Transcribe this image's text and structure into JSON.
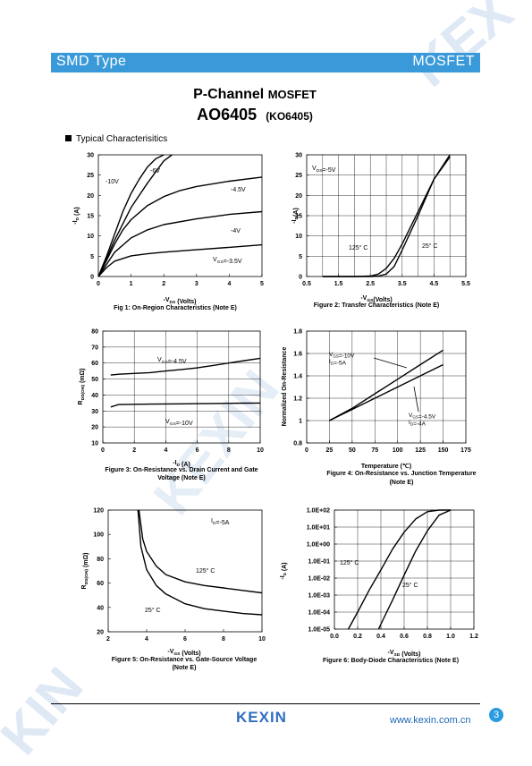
{
  "header": {
    "left": "SMD Type",
    "right": "MOSFET"
  },
  "title": {
    "line1_main": "P-Channel ",
    "line1_small": "MOSFET",
    "part": "AO6405",
    "alt_part": "(KO6405)"
  },
  "section_title": "Typical  Characterisitics",
  "footer": {
    "logo": "KEXIN",
    "website": "www.kexin.com.cn",
    "page": "3"
  },
  "charts": [
    {
      "id": "fig1",
      "caption": "Fig 1: On-Region Characteristics (Note E)",
      "xlabel": "-VDS (Volts)",
      "ylabel": "-ID (A)",
      "x_ticks": [
        "0",
        "1",
        "2",
        "3",
        "4",
        "5"
      ],
      "y_ticks": [
        "0",
        "5",
        "10",
        "15",
        "20",
        "25",
        "30"
      ],
      "annotations": [
        "-10V",
        "-6V",
        "-4.5V",
        "-4V",
        "VGS=-3.5V"
      ]
    },
    {
      "id": "fig2",
      "caption": "Figure 2: Transfer Characteristics (Note E)",
      "xlabel": "-VGS(Volts)",
      "ylabel": "-ID(A)",
      "x_ticks": [
        "0.5",
        "1.5",
        "2.5",
        "3.5",
        "4.5",
        "5.5"
      ],
      "x_minor_ticks": [
        "1",
        "2",
        "3",
        "4",
        "5"
      ],
      "y_ticks": [
        "0",
        "5",
        "10",
        "15",
        "20",
        "25",
        "30"
      ],
      "annotations": [
        "VDS=-5V",
        "125° C",
        "25° C"
      ]
    },
    {
      "id": "fig3",
      "caption": "Figure 3: On-Resistance vs. Drain Current and Gate Voltage (Note E)",
      "xlabel": "-ID (A)",
      "ylabel": "RDS(ON) (mΩ)",
      "x_ticks": [
        "0",
        "2",
        "4",
        "6",
        "8",
        "10"
      ],
      "y_ticks": [
        "10",
        "20",
        "30",
        "40",
        "50",
        "60",
        "70",
        "80"
      ],
      "annotations": [
        "VGS=-4.5V",
        "VGS=-10V"
      ]
    },
    {
      "id": "fig4",
      "caption": "Figure 4: On-Resistance vs. Junction Temperature (Note E)",
      "xlabel": "Temperature (℃)",
      "ylabel": "Normalized On-Resistance",
      "x_ticks": [
        "0",
        "25",
        "50",
        "75",
        "100",
        "125",
        "150",
        "175"
      ],
      "y_ticks": [
        "0.8",
        "1",
        "1.2",
        "1.4",
        "1.6",
        "1.8"
      ],
      "annotations": [
        "VGS=-10V",
        "ID=-5A",
        "VGS=-4.5V",
        "ID=-4A"
      ]
    },
    {
      "id": "fig5",
      "caption": "Figure 5: On-Resistance vs. Gate-Source Voltage (Note E)",
      "xlabel": "-VGS (Volts)",
      "ylabel": "RDS(ON) (mΩ)",
      "x_ticks": [
        "2",
        "4",
        "6",
        "8",
        "10"
      ],
      "y_ticks": [
        "20",
        "40",
        "60",
        "80",
        "100",
        "120"
      ],
      "annotations": [
        "ID=-5A",
        "125° C",
        "25° C"
      ]
    },
    {
      "id": "fig6",
      "caption": "Figure 6: Body-Diode Characteristics (Note E)",
      "xlabel": "-VSD (Volts)",
      "ylabel": "-IS (A)",
      "x_ticks": [
        "0.0",
        "0.2",
        "0.4",
        "0.6",
        "0.8",
        "1.0",
        "1.2"
      ],
      "y_ticks": [
        "1.0E-05",
        "1.0E-04",
        "1.0E-03",
        "1.0E-02",
        "1.0E-01",
        "1.0E+00",
        "1.0E+01",
        "1.0E+02"
      ],
      "annotations": [
        "125° C",
        "25° C"
      ]
    }
  ],
  "chart_data": [
    {
      "type": "line",
      "title": "Fig 1: On-Region Characteristics (Note E)",
      "xlabel": "-VDS (Volts)",
      "ylabel": "-ID (A)",
      "xlim": [
        0,
        5
      ],
      "ylim": [
        0,
        30
      ],
      "grid": false,
      "series": [
        {
          "name": "-10V",
          "x": [
            0,
            0.25,
            0.5,
            0.75,
            1,
            1.25,
            1.5,
            1.75,
            2
          ],
          "y": [
            0,
            5,
            10.5,
            16,
            20.5,
            24,
            27,
            29,
            30
          ]
        },
        {
          "name": "-6V",
          "x": [
            0,
            0.25,
            0.5,
            0.75,
            1,
            1.5,
            2,
            2.25
          ],
          "y": [
            0,
            4.5,
            9,
            13,
            17,
            23,
            28.5,
            30
          ]
        },
        {
          "name": "-4.5V",
          "x": [
            0,
            0.25,
            0.5,
            0.75,
            1,
            1.5,
            2,
            2.5,
            3,
            4,
            5
          ],
          "y": [
            0,
            4,
            8,
            11.5,
            14,
            17.5,
            19.7,
            21.2,
            22.2,
            23.5,
            24.5
          ]
        },
        {
          "name": "-4V",
          "x": [
            0,
            0.25,
            0.5,
            1,
            1.5,
            2,
            3,
            4,
            5
          ],
          "y": [
            0,
            3,
            6,
            9.5,
            11.5,
            12.8,
            14.2,
            15.3,
            16
          ]
        },
        {
          "name": "VGS=-3.5V",
          "x": [
            0,
            0.25,
            0.5,
            1,
            1.5,
            2,
            3,
            4,
            5
          ],
          "y": [
            0,
            2.2,
            3.8,
            5.1,
            5.6,
            6,
            6.6,
            7.2,
            7.8
          ]
        }
      ]
    },
    {
      "type": "line",
      "title": "Figure 2: Transfer Characteristics (Note E)",
      "xlabel": "-VGS(Volts)",
      "ylabel": "-ID(A)",
      "xlim": [
        0.5,
        5.5
      ],
      "ylim": [
        0,
        30
      ],
      "grid": true,
      "series": [
        {
          "name": "125° C",
          "x": [
            1.0,
            2.0,
            2.5,
            2.75,
            3.0,
            3.25,
            3.5,
            4.0,
            4.5,
            5.0
          ],
          "y": [
            0,
            0,
            0.1,
            0.6,
            2,
            4.5,
            8,
            16,
            24,
            30
          ]
        },
        {
          "name": "25° C",
          "x": [
            1.0,
            2.5,
            2.75,
            3.0,
            3.25,
            3.5,
            4.0,
            4.5,
            5.0
          ],
          "y": [
            0,
            0,
            0.1,
            0.6,
            2.5,
            6.5,
            15,
            24,
            29.5
          ]
        }
      ]
    },
    {
      "type": "line",
      "title": "Figure 3: On-Resistance vs. Drain Current and Gate Voltage (Note E)",
      "xlabel": "-ID (A)",
      "ylabel": "RDS(ON) (mΩ)",
      "xlim": [
        0,
        10
      ],
      "ylim": [
        10,
        80
      ],
      "grid": true,
      "series": [
        {
          "name": "VGS=-4.5V",
          "x": [
            0.5,
            1,
            2,
            3,
            4,
            5,
            6,
            7,
            8,
            9,
            10
          ],
          "y": [
            52.5,
            53,
            53.5,
            54,
            55,
            56,
            57,
            58.5,
            60,
            61.5,
            63
          ]
        },
        {
          "name": "VGS=-10V",
          "x": [
            0.5,
            1,
            2,
            3,
            4,
            5,
            6,
            7,
            8,
            9,
            10
          ],
          "y": [
            32.5,
            34,
            34.2,
            34.3,
            34.4,
            34.5,
            34.6,
            34.7,
            34.8,
            34.9,
            35
          ]
        }
      ]
    },
    {
      "type": "line",
      "title": "Figure 4: On-Resistance vs. Junction Temperature (Note E)",
      "xlabel": "Temperature (℃)",
      "ylabel": "Normalized On-Resistance",
      "xlim": [
        0,
        175
      ],
      "ylim": [
        0.8,
        1.8
      ],
      "grid": true,
      "series": [
        {
          "name": "VGS=-10V",
          "x": [
            25,
            50,
            75,
            100,
            125,
            150
          ],
          "y": [
            1.0,
            1.11,
            1.24,
            1.37,
            1.5,
            1.63
          ]
        },
        {
          "name": "VGS=-4.5V",
          "x": [
            25,
            50,
            75,
            100,
            125,
            150
          ],
          "y": [
            1.0,
            1.1,
            1.2,
            1.3,
            1.4,
            1.5
          ]
        }
      ]
    },
    {
      "type": "line",
      "title": "Figure 5: On-Resistance vs. Gate-Source Voltage (Note E)",
      "xlabel": "-VGS (Volts)",
      "ylabel": "RDS(ON) (mΩ)",
      "xlim": [
        2,
        10
      ],
      "ylim": [
        20,
        120
      ],
      "grid": false,
      "series": [
        {
          "name": "125° C",
          "x": [
            3.6,
            3.8,
            4,
            4.5,
            5,
            6,
            7,
            8,
            9,
            10
          ],
          "y": [
            120,
            96,
            86,
            74,
            67,
            61,
            58,
            56,
            54,
            52
          ]
        },
        {
          "name": "25° C",
          "x": [
            3.55,
            3.7,
            4,
            4.5,
            5,
            6,
            7,
            8,
            9,
            10
          ],
          "y": [
            120,
            90,
            71,
            58,
            51,
            43,
            39,
            37,
            35,
            34
          ]
        }
      ]
    },
    {
      "type": "line",
      "title": "Figure 6: Body-Diode Characteristics (Note E)",
      "xlabel": "-VSD (Volts)",
      "ylabel": "-IS (A)",
      "yscale": "log",
      "xlim": [
        0,
        1.2
      ],
      "ylim": [
        1e-05,
        100
      ],
      "grid": true,
      "series": [
        {
          "name": "125° C",
          "x": [
            0.12,
            0.2,
            0.3,
            0.4,
            0.5,
            0.6,
            0.7,
            0.8,
            0.9,
            1.0
          ],
          "y": [
            1e-05,
            0.0001,
            0.002,
            0.03,
            0.5,
            5,
            30,
            80,
            100,
            100
          ]
        },
        {
          "name": "25° C",
          "x": [
            0.38,
            0.45,
            0.5,
            0.6,
            0.7,
            0.8,
            0.9,
            1.0
          ],
          "y": [
            1e-05,
            0.0001,
            0.0005,
            0.015,
            0.4,
            6,
            50,
            100
          ]
        }
      ]
    }
  ]
}
